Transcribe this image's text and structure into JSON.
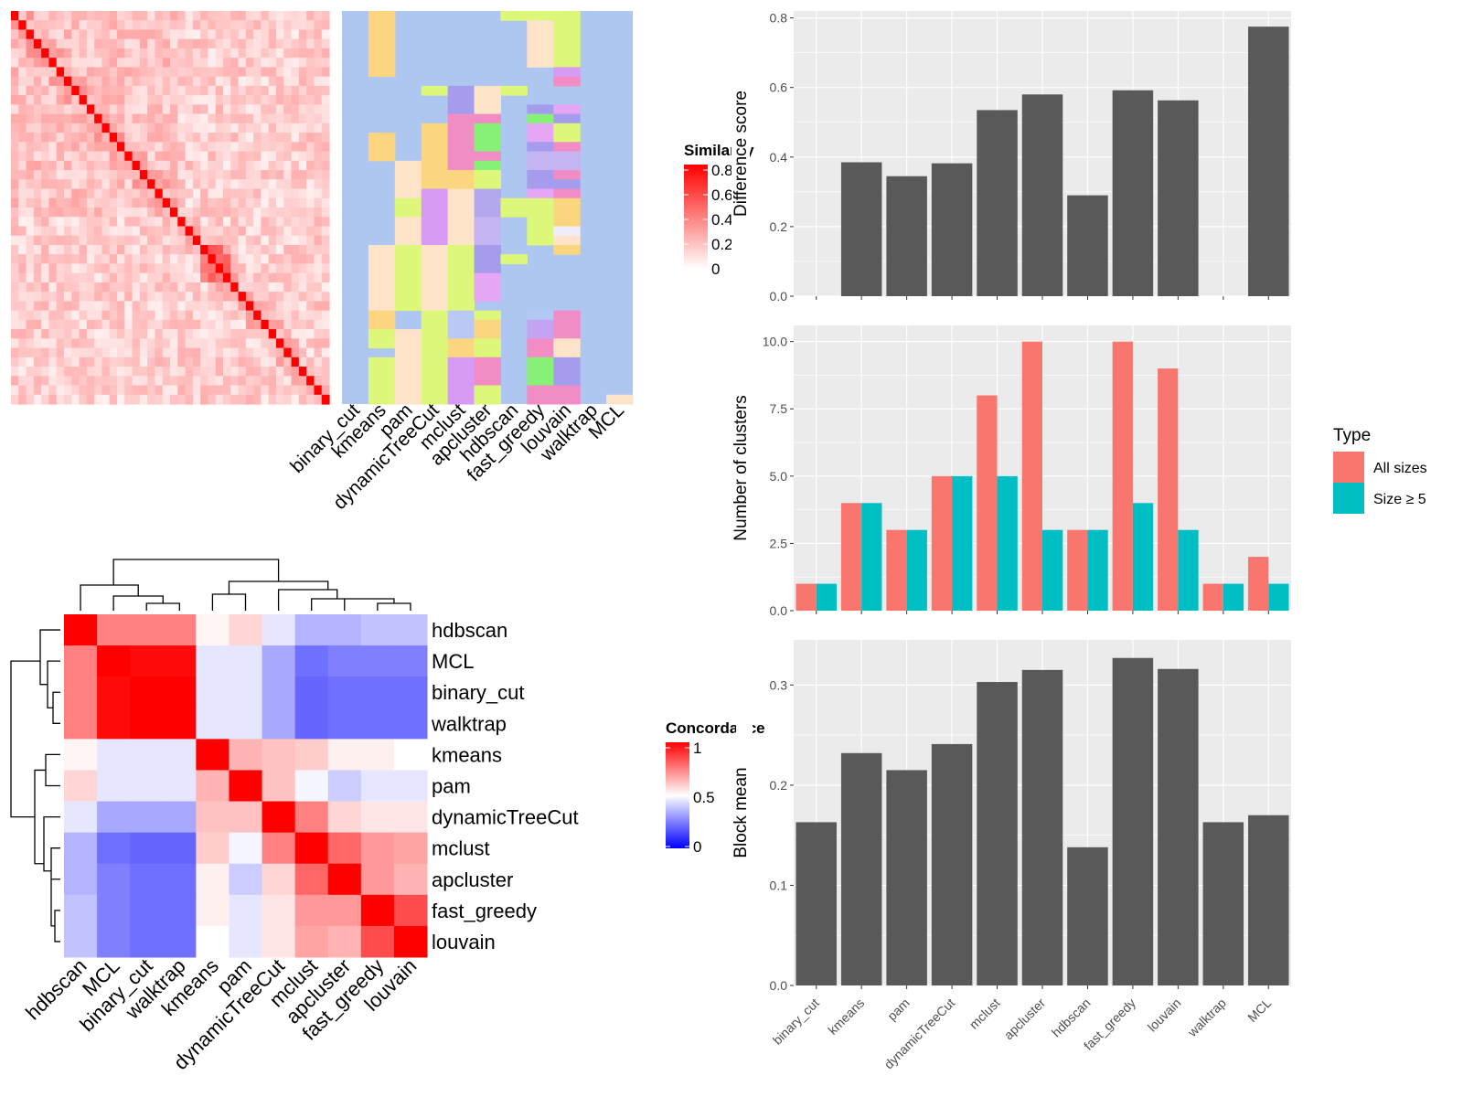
{
  "methods_order": [
    "binary_cut",
    "kmeans",
    "pam",
    "dynamicTreeCut",
    "mclust",
    "apcluster",
    "hdbscan",
    "fast_greedy",
    "louvain",
    "walktrap",
    "MCL"
  ],
  "similarity_legend": {
    "title": "Similarity",
    "ticks": [
      "0.8",
      "0.6",
      "0.4",
      "0.2",
      "0"
    ]
  },
  "concordance_legend": {
    "title": "Concordance",
    "ticks": [
      "1",
      "0.5",
      "0"
    ]
  },
  "concordance_order": [
    "hdbscan",
    "MCL",
    "binary_cut",
    "walktrap",
    "kmeans",
    "pam",
    "dynamicTreeCut",
    "mclust",
    "apcluster",
    "fast_greedy",
    "louvain"
  ],
  "chart_data": [
    {
      "type": "bar",
      "categories": [
        "binary_cut",
        "kmeans",
        "pam",
        "dynamicTreeCut",
        "mclust",
        "apcluster",
        "hdbscan",
        "fast_greedy",
        "louvain",
        "walktrap",
        "MCL"
      ],
      "values": [
        0,
        0.385,
        0.345,
        0.382,
        0.535,
        0.58,
        0.29,
        0.592,
        0.563,
        0,
        0.775
      ],
      "ylabel": "Difference score",
      "ylim": [
        0,
        0.82
      ],
      "yticks": [
        "0.0",
        "0.2",
        "0.4",
        "0.6",
        "0.8"
      ],
      "grid": true
    },
    {
      "type": "bar",
      "categories": [
        "binary_cut",
        "kmeans",
        "pam",
        "dynamicTreeCut",
        "mclust",
        "apcluster",
        "hdbscan",
        "fast_greedy",
        "louvain",
        "walktrap",
        "MCL"
      ],
      "series": [
        {
          "name": "All sizes",
          "values": [
            1,
            4,
            3,
            5,
            8,
            10,
            3,
            10,
            9,
            1,
            2
          ],
          "color": "#F8766D"
        },
        {
          "name": "Size ≥ 5",
          "values": [
            1,
            4,
            3,
            5,
            5,
            3,
            3,
            4,
            3,
            1,
            1
          ],
          "color": "#00BFC4"
        }
      ],
      "ylabel": "Number of clusters",
      "ylim": [
        0,
        10.6
      ],
      "yticks": [
        "0.0",
        "2.5",
        "5.0",
        "7.5",
        "10.0"
      ],
      "legend": {
        "title": "Type",
        "position": "right"
      },
      "grid": true
    },
    {
      "type": "bar",
      "categories": [
        "binary_cut",
        "kmeans",
        "pam",
        "dynamicTreeCut",
        "mclust",
        "apcluster",
        "hdbscan",
        "fast_greedy",
        "louvain",
        "walktrap",
        "MCL"
      ],
      "values": [
        0.163,
        0.232,
        0.215,
        0.241,
        0.303,
        0.315,
        0.138,
        0.327,
        0.316,
        0.163,
        0.17
      ],
      "ylabel": "Block mean",
      "ylim": [
        0,
        0.345
      ],
      "yticks": [
        "0.0",
        "0.1",
        "0.2",
        "0.3"
      ],
      "grid": true
    },
    {
      "type": "heatmap",
      "rows": [
        "hdbscan",
        "MCL",
        "binary_cut",
        "walktrap",
        "kmeans",
        "pam",
        "dynamicTreeCut",
        "mclust",
        "apcluster",
        "fast_greedy",
        "louvain"
      ],
      "columns": [
        "hdbscan",
        "MCL",
        "binary_cut",
        "walktrap",
        "kmeans",
        "pam",
        "dynamicTreeCut",
        "mclust",
        "apcluster",
        "fast_greedy",
        "louvain"
      ],
      "values": [
        [
          1.0,
          0.75,
          0.75,
          0.75,
          0.52,
          0.58,
          0.45,
          0.35,
          0.35,
          0.38,
          0.38
        ],
        [
          0.75,
          1.0,
          0.98,
          0.98,
          0.45,
          0.45,
          0.33,
          0.22,
          0.25,
          0.25,
          0.25
        ],
        [
          0.75,
          0.98,
          1.0,
          1.0,
          0.45,
          0.45,
          0.33,
          0.2,
          0.22,
          0.22,
          0.22
        ],
        [
          0.75,
          0.98,
          1.0,
          1.0,
          0.45,
          0.45,
          0.33,
          0.2,
          0.22,
          0.22,
          0.22
        ],
        [
          0.52,
          0.45,
          0.45,
          0.45,
          1.0,
          0.65,
          0.62,
          0.6,
          0.53,
          0.53,
          0.5
        ],
        [
          0.58,
          0.45,
          0.45,
          0.45,
          0.65,
          1.0,
          0.62,
          0.48,
          0.4,
          0.45,
          0.45
        ],
        [
          0.45,
          0.33,
          0.33,
          0.33,
          0.62,
          0.62,
          1.0,
          0.75,
          0.58,
          0.55,
          0.55
        ],
        [
          0.35,
          0.22,
          0.2,
          0.2,
          0.6,
          0.48,
          0.75,
          1.0,
          0.8,
          0.7,
          0.68
        ],
        [
          0.35,
          0.25,
          0.22,
          0.22,
          0.53,
          0.4,
          0.58,
          0.8,
          1.0,
          0.7,
          0.65
        ],
        [
          0.38,
          0.25,
          0.22,
          0.22,
          0.53,
          0.45,
          0.55,
          0.7,
          0.7,
          1.0,
          0.85
        ],
        [
          0.38,
          0.25,
          0.22,
          0.22,
          0.5,
          0.45,
          0.55,
          0.68,
          0.65,
          0.85,
          1.0
        ]
      ],
      "colorscale": {
        "low": "#0000FF",
        "mid": "#FFFFFF",
        "high": "#FF0000",
        "range": [
          0,
          1
        ]
      }
    }
  ]
}
